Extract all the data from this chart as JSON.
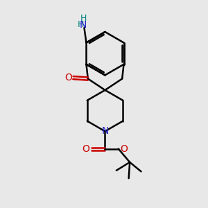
{
  "background_color": "#e8e8e8",
  "bond_color": "#000000",
  "nitrogen_color": "#2222cc",
  "oxygen_color": "#cc0000",
  "hydrogen_color": "#008080",
  "bond_width": 1.8,
  "figsize": [
    3.0,
    3.0
  ],
  "dpi": 100,
  "xlim": [
    0,
    10
  ],
  "ylim": [
    0,
    10
  ]
}
